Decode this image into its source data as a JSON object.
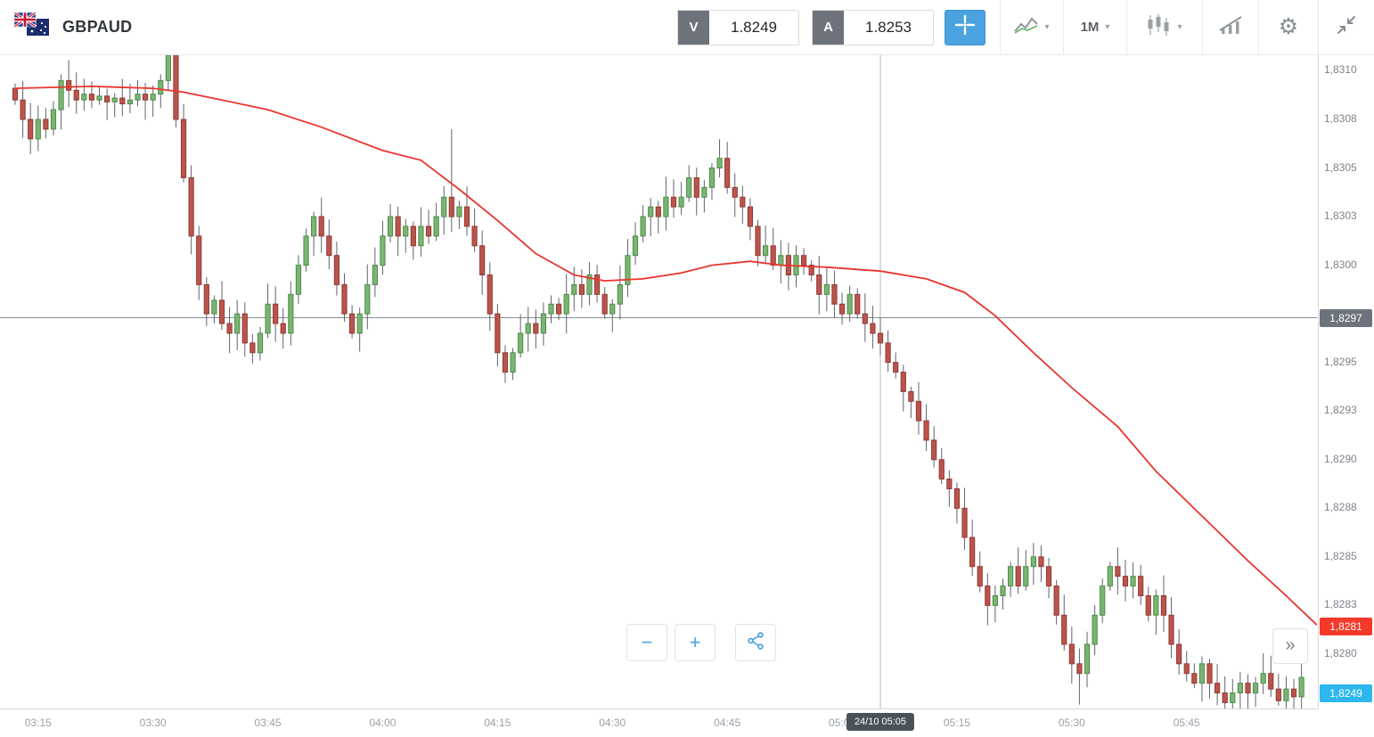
{
  "header": {
    "symbol": "GBPAUD",
    "sell_label": "V",
    "sell_price": "1.8249",
    "buy_label": "A",
    "buy_price": "1.8253",
    "timeframe": "1M"
  },
  "icons": {
    "flag": "GB+AU combined flags",
    "crosshair": "crosshair plus",
    "chart_type": "line-chart",
    "caret": "▾",
    "candle_style": "candlesticks",
    "indicators": "trend-bars",
    "settings": "⚙",
    "collapse": "collapse-arrows",
    "zoom_out": "−",
    "zoom_in": "+",
    "share": "share-nodes",
    "scroll_right": "»"
  },
  "chart_data": {
    "type": "candlestick",
    "symbol": "GBPAUD",
    "timeframe": "1M",
    "base_price": 1.82,
    "pip_value": 0.0001,
    "start_time": "03:12",
    "y_range_pips": [
      77.2,
      110.8
    ],
    "closes_pips": [
      108.5,
      107.5,
      106.5,
      107.5,
      107,
      108,
      109.5,
      109,
      108.5,
      108.8,
      108.5,
      108.7,
      108.4,
      108.6,
      108.3,
      108.5,
      108.8,
      108.5,
      108.8,
      109.5,
      110.8,
      107.5,
      104.5,
      101.5,
      99,
      97.5,
      98.2,
      97,
      96.5,
      97.5,
      96,
      95.5,
      96.5,
      98,
      97,
      96.5,
      98.5,
      100,
      101.5,
      102.5,
      101.5,
      100.5,
      99,
      97.5,
      96.5,
      97.5,
      99,
      100,
      101.5,
      102.5,
      101.5,
      102,
      101,
      102,
      101.5,
      102.5,
      103.5,
      102.5,
      103,
      102,
      101,
      99.5,
      97.5,
      95.5,
      94.5,
      95.5,
      96.5,
      97,
      96.5,
      97.5,
      98,
      97.5,
      98.5,
      99,
      98.5,
      99.5,
      98.5,
      97.5,
      98,
      99,
      100.5,
      101.5,
      102.5,
      103,
      102.5,
      103.5,
      103,
      103.5,
      104.5,
      103.5,
      104,
      105,
      105.5,
      104,
      103.5,
      103,
      102,
      100.5,
      101,
      100,
      100.5,
      99.5,
      100.5,
      100,
      99.5,
      98.5,
      99,
      98,
      97.5,
      98.5,
      97.5,
      97,
      96.5,
      96,
      95,
      94.5,
      93.5,
      93,
      92,
      91,
      90,
      89,
      88.5,
      87.5,
      86,
      84.5,
      83.5,
      82.5,
      83,
      83.5,
      84.5,
      83.5,
      84.5,
      85,
      84.5,
      83.5,
      82,
      80.5,
      79.5,
      79,
      80.5,
      82,
      83.5,
      84.5,
      84,
      83.5,
      84,
      83,
      82,
      83,
      82,
      80.5,
      79.5,
      79,
      78.5,
      79.5,
      78.5,
      78,
      77.5,
      78,
      78.5,
      78,
      78.5,
      79,
      78.2,
      77.6,
      78.2,
      77.8,
      78.8
    ],
    "wick_high_overrides": {
      "20": 111.2,
      "57": 107.0,
      "168": 80.4
    },
    "wick_low_overrides": {
      "139": 77.4
    },
    "ma": {
      "name": "moving-average",
      "color": "#e8352e",
      "points": [
        [
          0,
          109.1
        ],
        [
          10,
          109.2
        ],
        [
          18,
          109.1
        ],
        [
          22,
          108.9
        ],
        [
          27,
          108.5
        ],
        [
          33,
          108.0
        ],
        [
          40,
          107.1
        ],
        [
          48,
          105.9
        ],
        [
          53,
          105.4
        ],
        [
          58,
          103.9
        ],
        [
          63,
          102.3
        ],
        [
          68,
          100.6
        ],
        [
          73,
          99.5
        ],
        [
          77,
          99.2
        ],
        [
          82,
          99.3
        ],
        [
          87,
          99.6
        ],
        [
          91,
          100.0
        ],
        [
          96,
          100.2
        ],
        [
          100,
          100.0
        ],
        [
          106,
          99.9
        ],
        [
          113,
          99.7
        ],
        [
          119,
          99.3
        ],
        [
          124,
          98.6
        ],
        [
          128,
          97.4
        ],
        [
          133,
          95.5
        ],
        [
          138,
          93.7
        ],
        [
          144,
          91.7
        ],
        [
          149,
          89.4
        ],
        [
          155,
          87.1
        ],
        [
          161,
          84.8
        ],
        [
          166,
          83.0
        ],
        [
          170,
          81.5
        ]
      ]
    },
    "y_axis": {
      "ticks": [
        {
          "label": "1,8310",
          "pips": 110
        },
        {
          "label": "1,8308",
          "pips": 107.5
        },
        {
          "label": "1,8305",
          "pips": 105
        },
        {
          "label": "1,8303",
          "pips": 102.5
        },
        {
          "label": "1,8300",
          "pips": 100
        },
        {
          "label": "1,8295",
          "pips": 95
        },
        {
          "label": "1,8293",
          "pips": 92.5
        },
        {
          "label": "1,8290",
          "pips": 90
        },
        {
          "label": "1,8288",
          "pips": 87.5
        },
        {
          "label": "1,8285",
          "pips": 85
        },
        {
          "label": "1,8283",
          "pips": 82.5
        },
        {
          "label": "1,8280",
          "pips": 80
        }
      ]
    },
    "x_axis": {
      "labels": [
        {
          "text": "03:15",
          "minute": 3
        },
        {
          "text": "03:30",
          "minute": 18
        },
        {
          "text": "03:45",
          "minute": 33
        },
        {
          "text": "04:00",
          "minute": 48
        },
        {
          "text": "04:15",
          "minute": 63
        },
        {
          "text": "04:30",
          "minute": 78
        },
        {
          "text": "04:45",
          "minute": 93
        },
        {
          "text": "05:00",
          "minute": 108
        },
        {
          "text": "05:15",
          "minute": 123
        },
        {
          "text": "05:30",
          "minute": 138
        },
        {
          "text": "05:45",
          "minute": 153
        }
      ]
    },
    "price_badges": [
      {
        "name": "current-price-badge",
        "label": "1,8297",
        "pips": 97.3,
        "color": "#6d737c",
        "pin": null
      },
      {
        "name": "ma-price-badge",
        "label": "1,8281",
        "pips": 81.4,
        "color": "#f6382a",
        "pin": null
      },
      {
        "name": "bid-price-badge",
        "label": "1,8249",
        "pips": null,
        "color": "#2eb7ef",
        "pin": "bottom"
      }
    ],
    "crosshair": {
      "minute": 113,
      "price_pips": 97.3,
      "time_label": "24/10 05:05",
      "price_label": "1,8297"
    },
    "colors": {
      "bull_fill": "#7ab573",
      "bull_stroke": "#4e8c49",
      "bear_fill": "#bb544c",
      "bear_stroke": "#8f3b35",
      "wick": "#5f646b",
      "crosshair_v": "#b3b8bf",
      "crosshair_h": "#878d94"
    }
  },
  "controls": {
    "zoom_out": "−",
    "zoom_in": "+",
    "scroll_right": "»"
  }
}
